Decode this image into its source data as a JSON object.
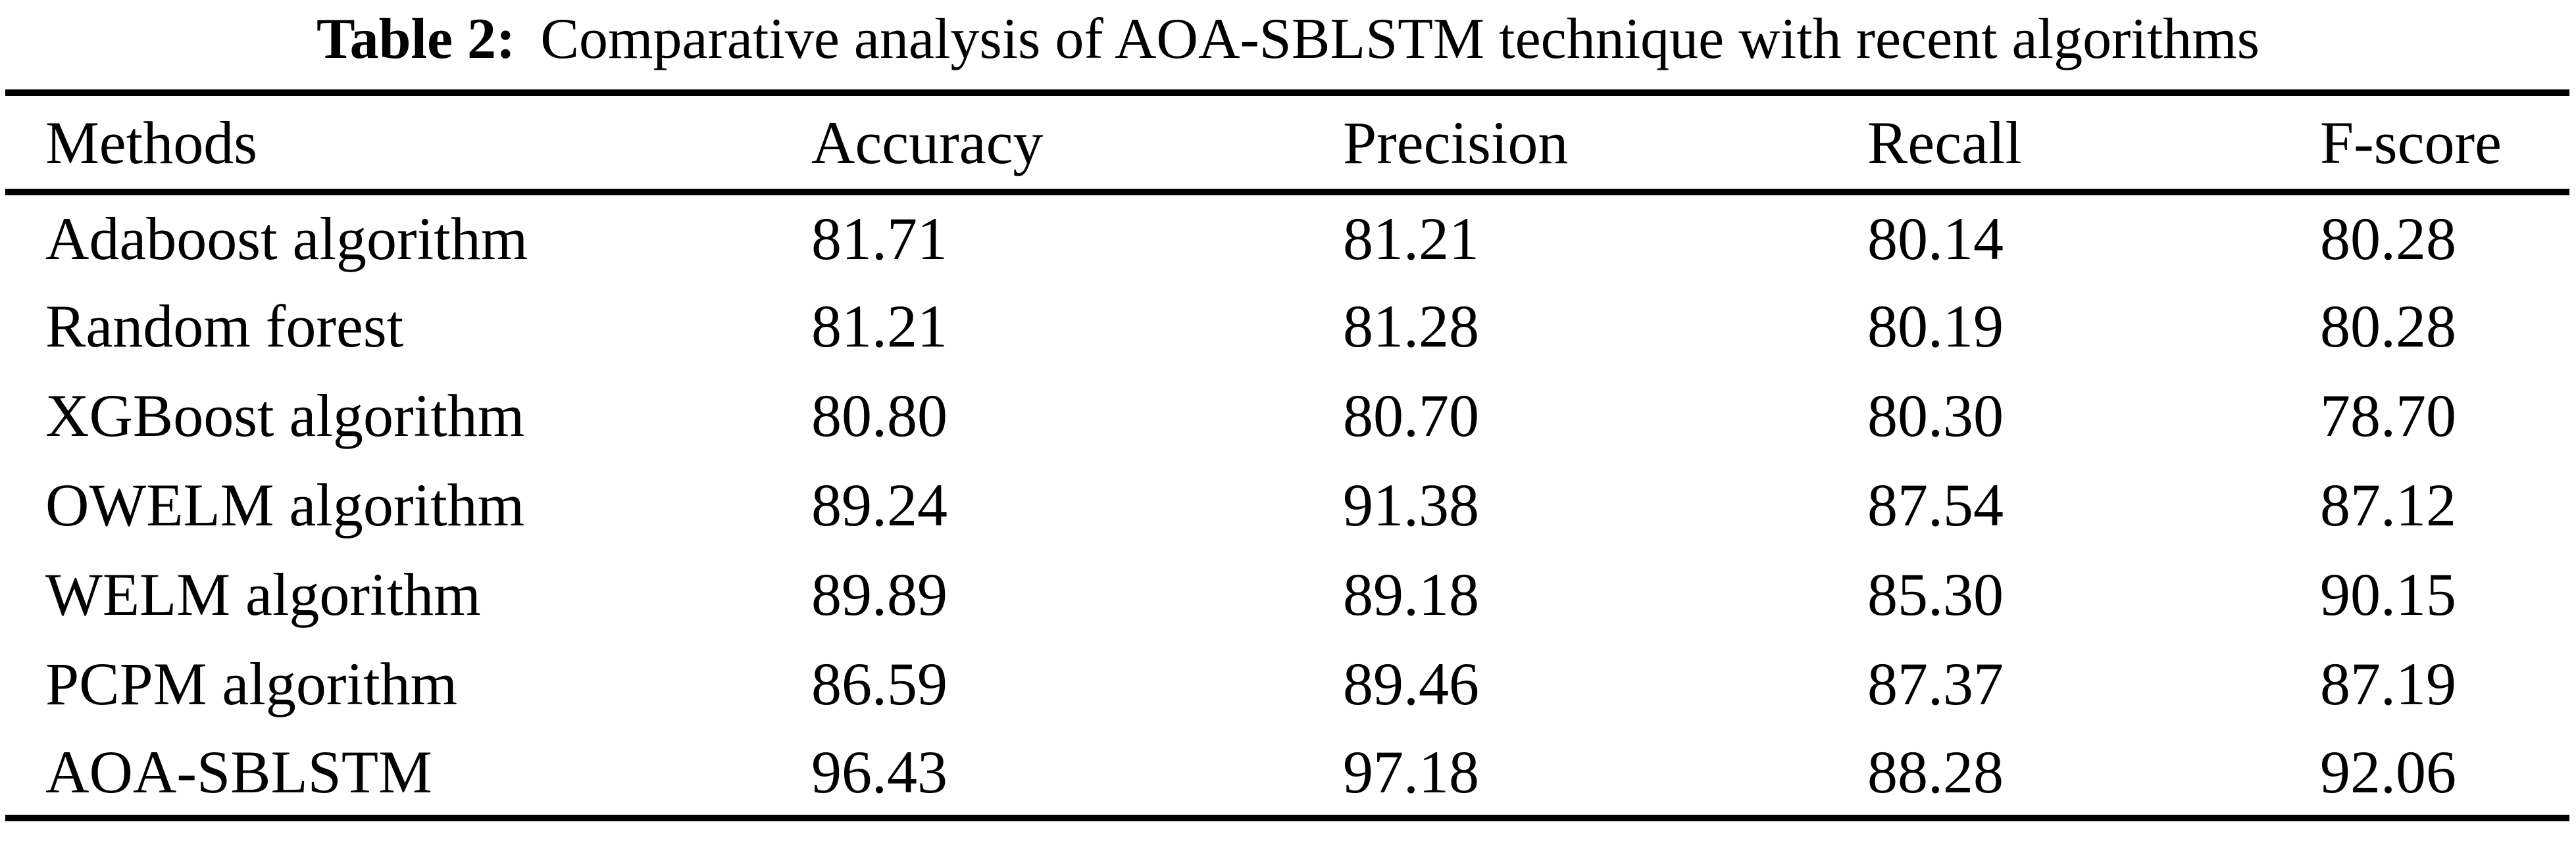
{
  "page": {
    "background_color": "#ffffff",
    "text_color": "#000000"
  },
  "caption": {
    "label": "Table 2:",
    "text": "Comparative analysis of AOA-SBLSTM technique with recent algorithms"
  },
  "table": {
    "columns": [
      "Methods",
      "Accuracy",
      "Precision",
      "Recall",
      "F-score"
    ],
    "rows": [
      [
        "Adaboost algorithm",
        "81.71",
        "81.21",
        "80.14",
        "80.28"
      ],
      [
        "Random forest",
        "81.21",
        "81.28",
        "80.19",
        "80.28"
      ],
      [
        "XGBoost algorithm",
        "80.80",
        "80.70",
        "80.30",
        "78.70"
      ],
      [
        "OWELM algorithm",
        "89.24",
        "91.38",
        "87.54",
        "87.12"
      ],
      [
        "WELM algorithm",
        "89.89",
        "89.18",
        "85.30",
        "90.15"
      ],
      [
        "PCPM algorithm",
        "86.59",
        "89.46",
        "87.37",
        "87.19"
      ],
      [
        "AOA-SBLSTM",
        "96.43",
        "97.18",
        "88.28",
        "92.06"
      ]
    ]
  }
}
